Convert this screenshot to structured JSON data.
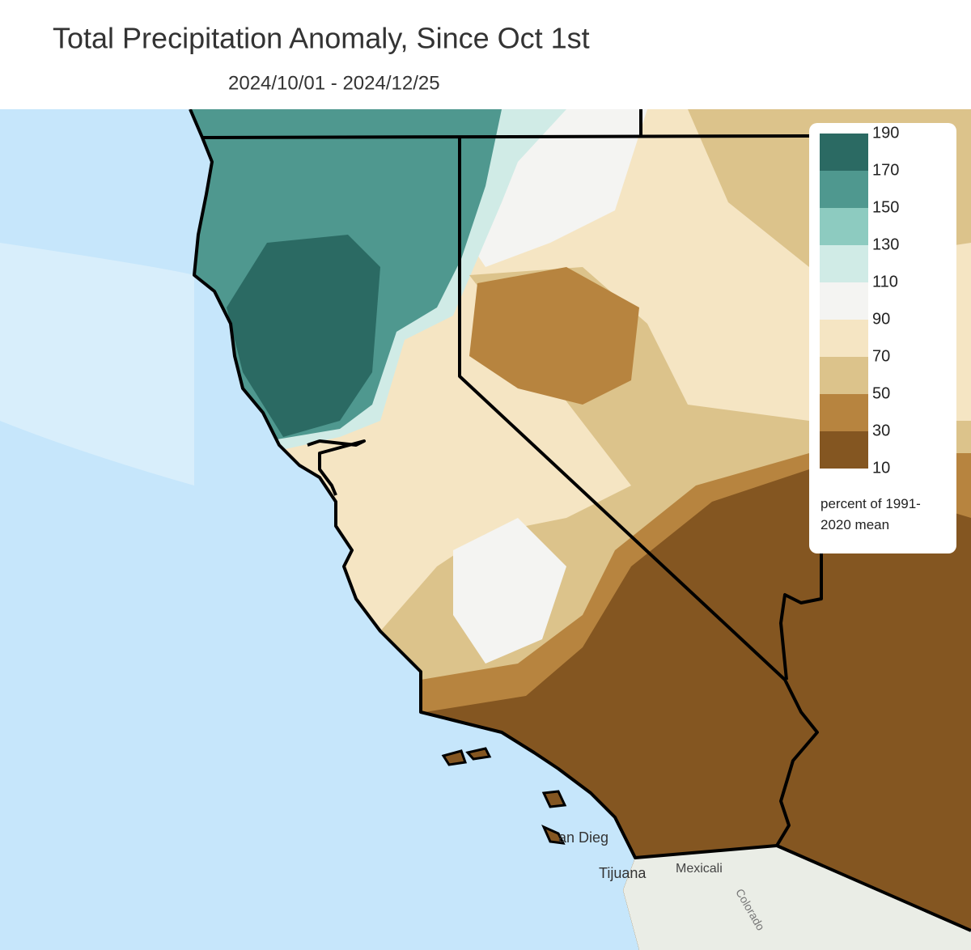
{
  "header": {
    "title": "Total Precipitation Anomaly, Since Oct 1st",
    "subtitle": "2024/10/01 - 2024/12/25"
  },
  "legend": {
    "ticks": [
      190,
      170,
      150,
      130,
      110,
      90,
      70,
      50,
      30,
      10
    ],
    "colors": [
      "#2b6a63",
      "#4f988f",
      "#8dcbc0",
      "#d0ebe6",
      "#f4f4f2",
      "#f5e5c3",
      "#dcc38b",
      "#b7843f",
      "#845621"
    ],
    "caption": "percent of 1991-2020 mean"
  },
  "places": {
    "san_diego": "an Dieg",
    "tijuana": "Tijuana",
    "mexicali": "Mexicali",
    "river": "Colorado"
  }
}
